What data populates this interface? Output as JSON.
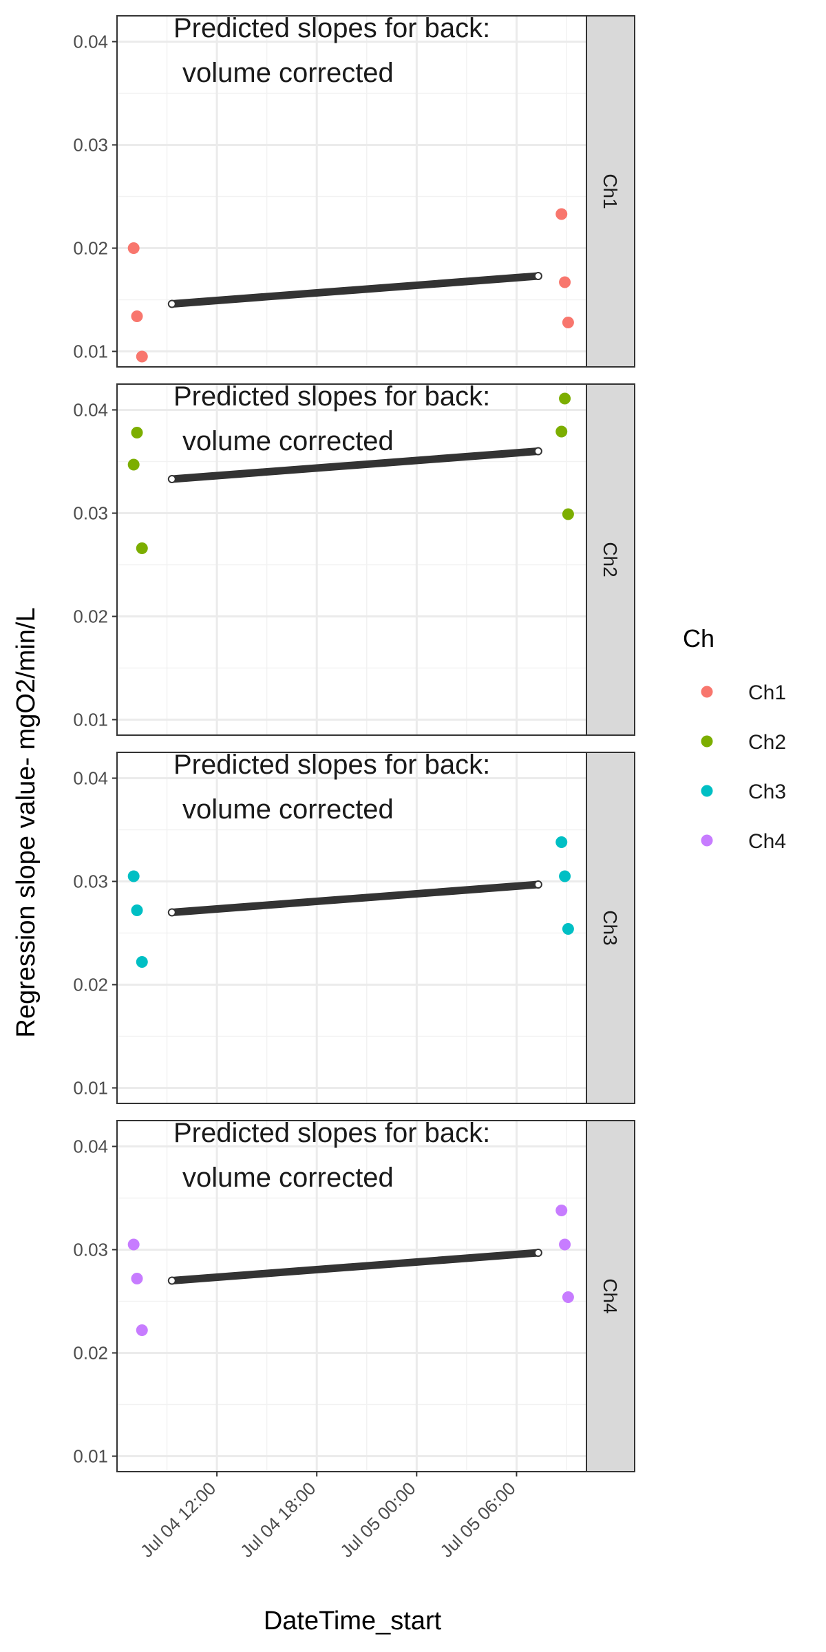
{
  "chart_data": {
    "type": "scatter",
    "x_label": "DateTime_start",
    "y_label": "Regression slope value- mgO2/min/L",
    "x_tick_labels": [
      "Jul 04 12:00",
      "Jul 04 18:00",
      "Jul 05 00:00",
      "Jul 05 06:00"
    ],
    "y_ticks": [
      0.01,
      0.02,
      0.03,
      0.04
    ],
    "y_tick_labels": [
      "0.01",
      "0.02",
      "0.03",
      "0.04"
    ],
    "ylim": [
      0.0085,
      0.0425
    ],
    "x_range_hours_from_midnight_jul04": [
      6.0,
      34.2
    ],
    "grid": true,
    "legend_position": "right",
    "legend": {
      "title": "Ch"
    },
    "panel_annotation_lines": [
      "Predicted slopes for back:",
      "volume corrected"
    ],
    "panels": [
      {
        "strip": "Ch1",
        "color": "#F8766D",
        "points": [
          {
            "x": 7.0,
            "y": 0.02
          },
          {
            "x": 7.2,
            "y": 0.0134
          },
          {
            "x": 7.5,
            "y": 0.0095
          },
          {
            "x": 32.7,
            "y": 0.0233
          },
          {
            "x": 32.9,
            "y": 0.0167
          },
          {
            "x": 33.1,
            "y": 0.0128
          }
        ],
        "predicted_line": {
          "x_start": 9.3,
          "y_start": 0.0146,
          "x_end": 31.3,
          "y_end": 0.0173
        }
      },
      {
        "strip": "Ch2",
        "color": "#7CAE00",
        "points": [
          {
            "x": 7.0,
            "y": 0.0347
          },
          {
            "x": 7.2,
            "y": 0.0378
          },
          {
            "x": 7.5,
            "y": 0.0266
          },
          {
            "x": 32.7,
            "y": 0.0379
          },
          {
            "x": 32.9,
            "y": 0.0411
          },
          {
            "x": 33.1,
            "y": 0.0299
          }
        ],
        "predicted_line": {
          "x_start": 9.3,
          "y_start": 0.0333,
          "x_end": 31.3,
          "y_end": 0.036
        }
      },
      {
        "strip": "Ch3",
        "color": "#00BFC4",
        "points": [
          {
            "x": 7.0,
            "y": 0.0305
          },
          {
            "x": 7.2,
            "y": 0.0272
          },
          {
            "x": 7.5,
            "y": 0.0222
          },
          {
            "x": 32.7,
            "y": 0.0338
          },
          {
            "x": 32.9,
            "y": 0.0305
          },
          {
            "x": 33.1,
            "y": 0.0254
          }
        ],
        "predicted_line": {
          "x_start": 9.3,
          "y_start": 0.027,
          "x_end": 31.3,
          "y_end": 0.0297
        }
      },
      {
        "strip": "Ch4",
        "color": "#C77CFF",
        "points": [
          {
            "x": 7.0,
            "y": 0.0305
          },
          {
            "x": 7.2,
            "y": 0.0272
          },
          {
            "x": 7.5,
            "y": 0.0222
          },
          {
            "x": 32.7,
            "y": 0.0338
          },
          {
            "x": 32.9,
            "y": 0.0305
          },
          {
            "x": 33.1,
            "y": 0.0254
          }
        ],
        "predicted_line": {
          "x_start": 9.3,
          "y_start": 0.027,
          "x_end": 31.3,
          "y_end": 0.0297
        }
      }
    ]
  }
}
